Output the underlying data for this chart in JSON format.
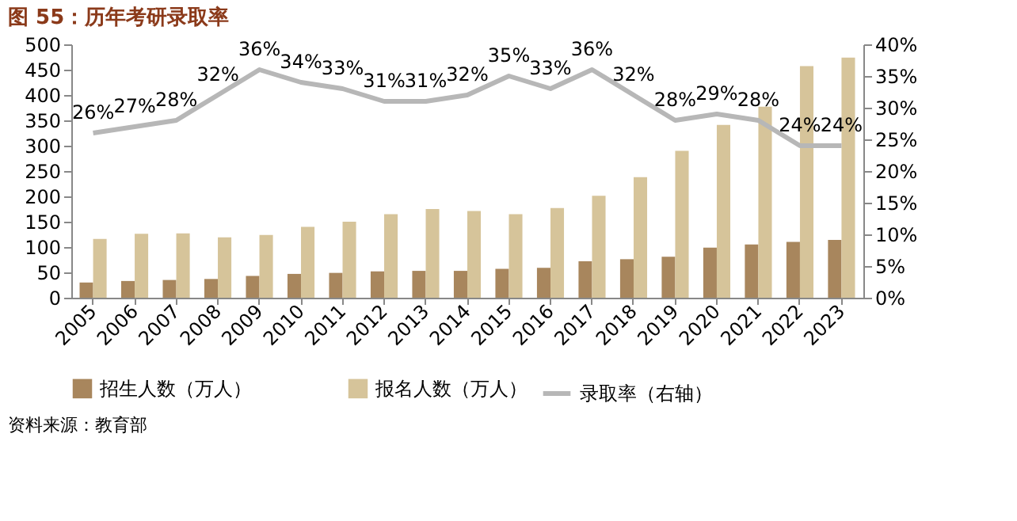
{
  "chart_data": {
    "type": "bar",
    "title": "图 55：历年考研录取率",
    "categories": [
      "2005",
      "2006",
      "2007",
      "2008",
      "2009",
      "2010",
      "2011",
      "2012",
      "2013",
      "2014",
      "2015",
      "2016",
      "2017",
      "2018",
      "2019",
      "2020",
      "2021",
      "2022",
      "2023"
    ],
    "series": [
      {
        "name": "招生人数（万人）",
        "color": "#a8865d",
        "values": [
          30,
          33,
          35,
          37,
          43,
          47,
          49,
          52,
          53,
          53,
          57,
          59,
          72,
          76,
          81,
          99,
          105,
          110,
          114
        ]
      },
      {
        "name": "报名人数（万人）",
        "color": "#d6c49a",
        "values": [
          116,
          126,
          127,
          119,
          124,
          140,
          150,
          165,
          175,
          171,
          165,
          177,
          201,
          238,
          290,
          341,
          377,
          457,
          474
        ]
      },
      {
        "name": "录取率（右轴）",
        "type": "line",
        "axis": "y2",
        "color": "#b7b7b7",
        "values": [
          26,
          27,
          28,
          32,
          36,
          34,
          33,
          31,
          31,
          32,
          35,
          33,
          36,
          32,
          28,
          29,
          28,
          24,
          24
        ],
        "value_labels": [
          "26%",
          "27%",
          "28%",
          "32%",
          "36%",
          "34%",
          "33%",
          "31%",
          "31%",
          "32%",
          "35%",
          "33%",
          "36%",
          "32%",
          "28%",
          "29%",
          "28%",
          "24%",
          "24%"
        ]
      }
    ],
    "ylim": [
      0,
      500
    ],
    "yticks": [
      0,
      50,
      100,
      150,
      200,
      250,
      300,
      350,
      400,
      450,
      500
    ],
    "y2lim": [
      0,
      40
    ],
    "y2ticks": [
      {
        "value": 0,
        "label": "0%"
      },
      {
        "value": 5,
        "label": "5%"
      },
      {
        "value": 10,
        "label": "10%"
      },
      {
        "value": 15,
        "label": "15%"
      },
      {
        "value": 20,
        "label": "20%"
      },
      {
        "value": 25,
        "label": "25%"
      },
      {
        "value": 30,
        "label": "30%"
      },
      {
        "value": 35,
        "label": "35%"
      },
      {
        "value": 40,
        "label": "40%"
      }
    ],
    "legend": "bottom",
    "grid": false,
    "annotations": [
      "资料来源：教育部"
    ]
  }
}
